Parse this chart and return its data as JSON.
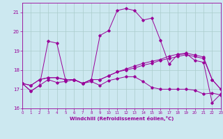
{
  "xlabel": "Windchill (Refroidissement éolien,°C)",
  "background_color": "#cce8f0",
  "grid_color": "#aacccc",
  "line_color": "#990099",
  "x_values": [
    0,
    1,
    2,
    3,
    4,
    5,
    6,
    7,
    8,
    9,
    10,
    11,
    12,
    13,
    14,
    15,
    16,
    17,
    18,
    19,
    20,
    21,
    22,
    23
  ],
  "series1": [
    17.3,
    16.9,
    17.2,
    17.5,
    17.35,
    17.4,
    17.5,
    17.3,
    17.4,
    17.2,
    17.45,
    17.55,
    17.65,
    17.65,
    17.4,
    17.1,
    17.0,
    17.0,
    17.0,
    17.0,
    16.95,
    16.75,
    16.8,
    16.7
  ],
  "series2": [
    17.3,
    16.9,
    17.2,
    19.5,
    19.4,
    17.5,
    17.5,
    17.3,
    17.5,
    19.8,
    20.05,
    21.1,
    21.2,
    21.1,
    20.6,
    20.7,
    19.55,
    18.3,
    18.8,
    18.85,
    18.5,
    18.4,
    16.3,
    16.75
  ],
  "series3": [
    17.3,
    17.2,
    17.5,
    17.6,
    17.6,
    17.5,
    17.5,
    17.3,
    17.5,
    17.5,
    17.7,
    17.9,
    18.0,
    18.1,
    18.25,
    18.35,
    18.5,
    18.6,
    18.7,
    18.8,
    18.7,
    18.6,
    17.5,
    17.0
  ],
  "series4": [
    17.3,
    17.2,
    17.5,
    17.6,
    17.6,
    17.5,
    17.5,
    17.3,
    17.5,
    17.5,
    17.7,
    17.9,
    18.05,
    18.2,
    18.35,
    18.45,
    18.55,
    18.72,
    18.82,
    18.88,
    18.78,
    18.68,
    17.5,
    17.0
  ],
  "ylim": [
    16.0,
    21.5
  ],
  "yticks": [
    16,
    17,
    18,
    19,
    20,
    21
  ],
  "xlim": [
    0,
    23
  ],
  "xticks": [
    0,
    1,
    2,
    3,
    4,
    5,
    6,
    7,
    8,
    9,
    10,
    11,
    12,
    13,
    14,
    15,
    16,
    17,
    18,
    19,
    20,
    21,
    22,
    23
  ]
}
